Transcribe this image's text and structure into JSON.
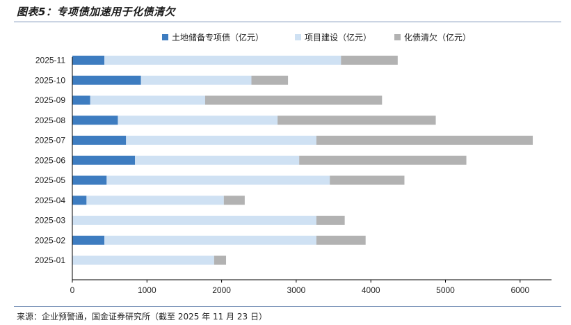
{
  "title": "图表5：专项债加速用于化债清欠",
  "source": "来源：企业预警通，国金证券研究所（截至 2025 年 11 月 23 日）",
  "chart_data": {
    "type": "bar",
    "orientation": "horizontal",
    "stacked": true,
    "categories": [
      "2025-11",
      "2025-10",
      "2025-09",
      "2025-08",
      "2025-07",
      "2025-06",
      "2025-05",
      "2025-04",
      "2025-03",
      "2025-02",
      "2025-01"
    ],
    "series": [
      {
        "name": "土地储备专项债（亿元）",
        "color": "#3d7cc0",
        "values": [
          430,
          920,
          240,
          610,
          720,
          840,
          460,
          190,
          0,
          430,
          0
        ]
      },
      {
        "name": "项目建设（亿元）",
        "color": "#cfe1f3",
        "values": [
          3170,
          1480,
          1540,
          2140,
          2550,
          2200,
          2990,
          1840,
          3270,
          2840,
          1900
        ]
      },
      {
        "name": "化债清欠（亿元）",
        "color": "#b2b2b2",
        "values": [
          760,
          490,
          2370,
          2120,
          2900,
          2240,
          1000,
          280,
          380,
          660,
          160
        ]
      }
    ],
    "xlim": [
      0,
      6700
    ],
    "xticks": [
      0,
      1000,
      2000,
      3000,
      4000,
      5000,
      6000
    ],
    "legend_position": "top",
    "grid": false
  }
}
